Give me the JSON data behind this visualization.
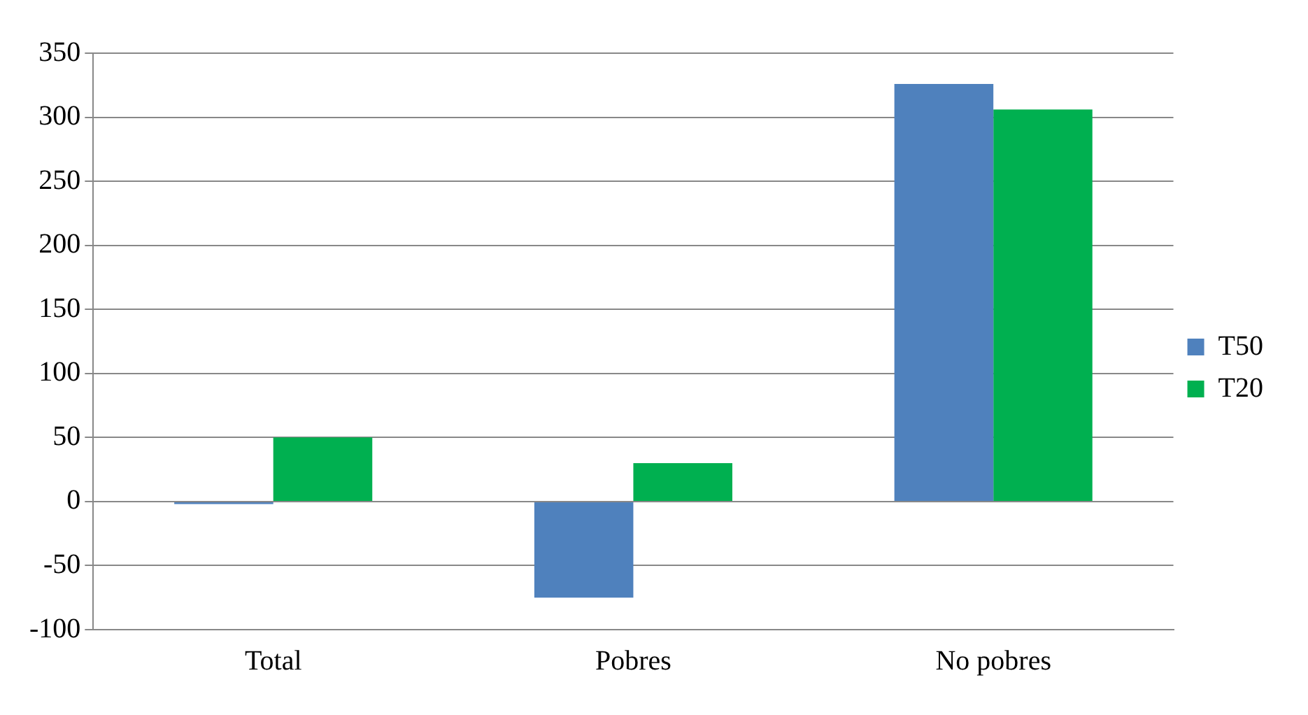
{
  "chart_data": {
    "type": "bar",
    "categories": [
      "Total",
      "Pobres",
      "No pobres"
    ],
    "series": [
      {
        "name": "T50",
        "color": "#4f81bd",
        "values": [
          -2,
          -75,
          326
        ]
      },
      {
        "name": "T20",
        "color": "#00b050",
        "values": [
          50,
          30,
          306
        ]
      }
    ],
    "ylim": [
      -100,
      350
    ],
    "yticks": [
      -100,
      -50,
      0,
      50,
      100,
      150,
      200,
      250,
      300,
      350
    ],
    "grid": "y",
    "legend": "right"
  }
}
